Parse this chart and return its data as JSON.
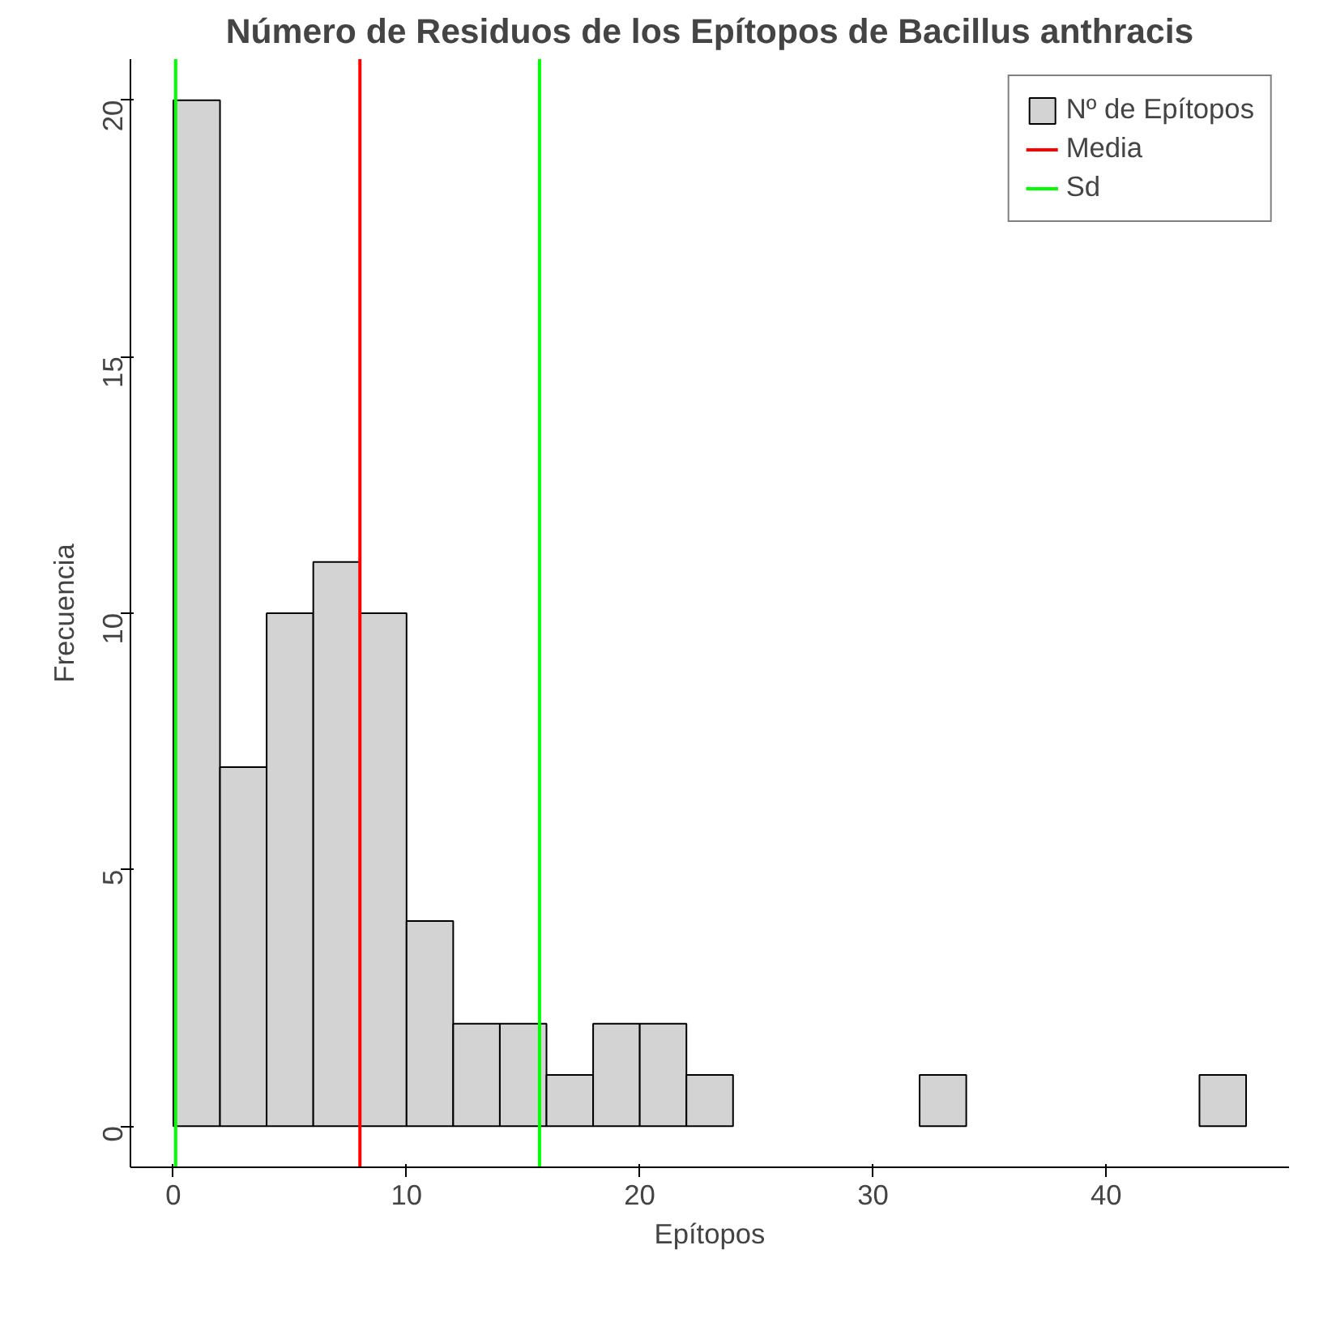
{
  "chart_data": {
    "type": "histogram",
    "title": "Número de Residuos de los Epítopos de Bacillus anthracis",
    "xlabel": "Epítopos",
    "ylabel": "Frecuencia",
    "bins": [
      0,
      2,
      4,
      6,
      8,
      10,
      12,
      14,
      16,
      18,
      20,
      22,
      24,
      26,
      28,
      30,
      32,
      34,
      36,
      38,
      40,
      42,
      44,
      46
    ],
    "series": [
      {
        "name": "Nº de Epítopos",
        "color": "#d3d3d3",
        "values": [
          20,
          7,
          10,
          11,
          10,
          4,
          2,
          2,
          1,
          2,
          2,
          1,
          0,
          0,
          0,
          0,
          1,
          0,
          0,
          0,
          0,
          0,
          1
        ]
      },
      {
        "type": "line",
        "name": "Media",
        "color": "#ff0000",
        "x": [
          8.0,
          8.0
        ],
        "values": [
          -0.8,
          20.8
        ]
      },
      {
        "type": "line",
        "name": "Sd",
        "color": "#00ff00",
        "x": [
          0.1,
          0.1
        ],
        "values": [
          -0.8,
          20.8
        ]
      },
      {
        "type": "line",
        "color": "#00ff00",
        "x": [
          15.7,
          15.7
        ],
        "values": [
          -0.8,
          20.8
        ]
      }
    ],
    "xlim": [
      -1.84,
      47.84
    ],
    "ylim": [
      -0.8,
      20.8
    ],
    "xticks": [
      0,
      10,
      20,
      30,
      40
    ],
    "yticks": [
      0,
      5,
      10,
      15,
      20
    ],
    "grid": false,
    "legend": "top right"
  }
}
